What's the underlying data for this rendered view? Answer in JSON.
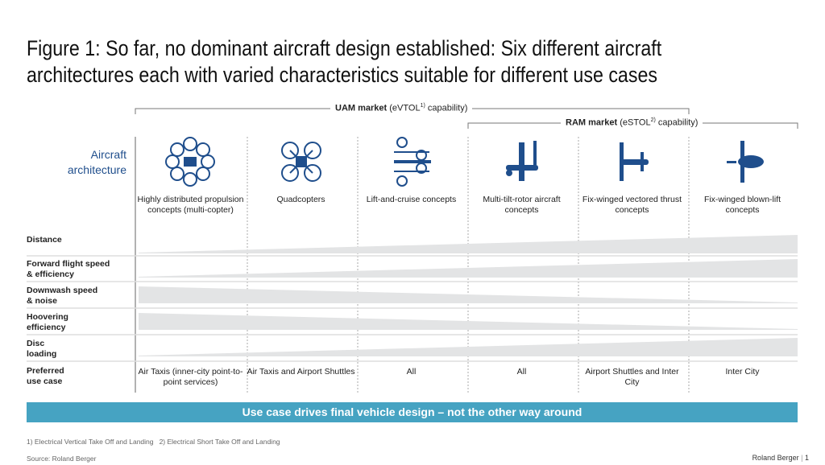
{
  "title": "Figure 1: So far, no dominant aircraft design established: Six different aircraft architectures each with varied characteristics suitable for different use cases",
  "uam": {
    "bold": "UAM market",
    "rest_pre": " (eVTOL",
    "sup": "1)",
    "rest_post": " capability)"
  },
  "ram": {
    "bold": "RAM market",
    "rest_pre": " (eSTOL",
    "sup": "2)",
    "rest_post": " capability)"
  },
  "row_header": "Aircraft architecture",
  "columns": [
    {
      "name": "Highly distributed propulsion concepts (multi-copter)",
      "icon": "multicopter-icon",
      "use_case": "Air Taxis (inner-city point-to-point services)"
    },
    {
      "name": "Quadcopters",
      "icon": "quadcopter-icon",
      "use_case": "Air Taxis and Airport Shuttles"
    },
    {
      "name": "Lift-and-cruise concepts",
      "icon": "lift-cruise-icon",
      "use_case": "All"
    },
    {
      "name": "Multi-tilt-rotor aircraft concepts",
      "icon": "tilt-rotor-icon",
      "use_case": "All"
    },
    {
      "name": "Fix-winged vectored thrust concepts",
      "icon": "vectored-thrust-icon",
      "use_case": "Airport Shuttles and Inter City"
    },
    {
      "name": "Fix-winged blown-lift concepts",
      "icon": "blown-lift-icon",
      "use_case": "Inter City"
    }
  ],
  "rows": [
    {
      "label": "Distance",
      "trend": "increasing"
    },
    {
      "label": "Forward flight speed & efficiency",
      "trend": "increasing"
    },
    {
      "label": "Downwash speed & noise",
      "trend": "decreasing"
    },
    {
      "label": "Hoovering efficiency",
      "trend": "decreasing"
    },
    {
      "label": "Disc loading",
      "trend": "increasing"
    }
  ],
  "use_case_label": "Preferred use case",
  "banner": "Use case drives final vehicle design – not the other way around",
  "footnotes": "1) Electrical Vertical Take Off and Landing   2) Electrical Short Take Off and Landing",
  "source": "Source: Roland Berger",
  "brand": "Roland Berger",
  "page": "1",
  "colors": {
    "icon": "#1f4e8c",
    "banner": "#46a3c2",
    "wedge": "#e3e4e5"
  }
}
